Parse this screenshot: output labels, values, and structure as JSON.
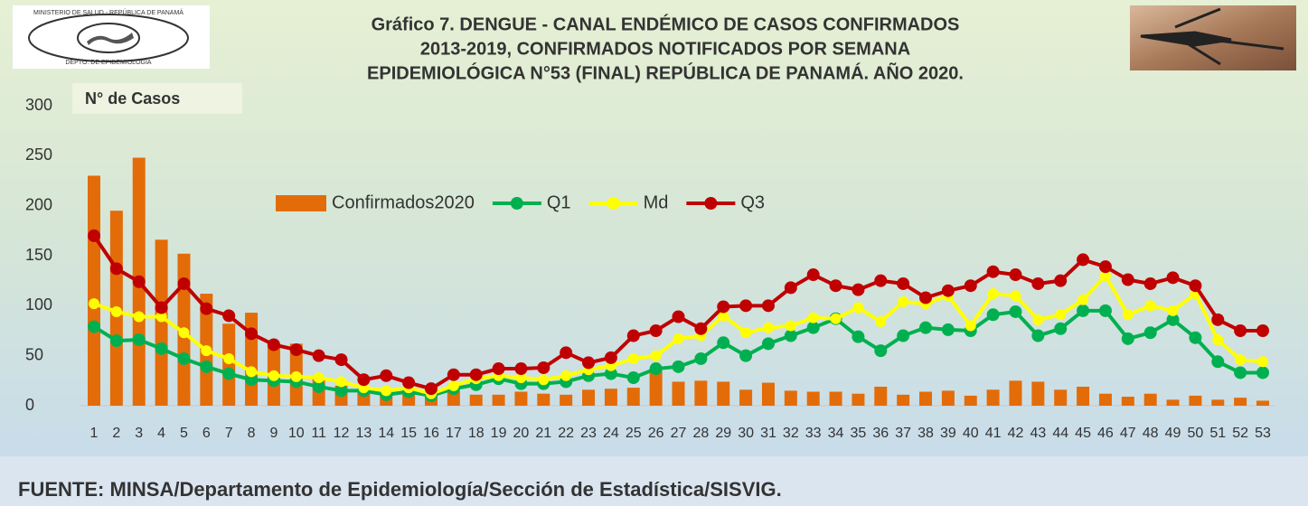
{
  "chart_data": {
    "type": "bar",
    "title_lines": [
      "Gráfico 7. DENGUE - CANAL ENDÉMICO DE CASOS CONFIRMADOS",
      "2013-2019, CONFIRMADOS NOTIFICADOS POR SEMANA",
      "EPIDEMIOLÓGICA N°53 (FINAL) REPÚBLICA DE PANAMÁ. AÑO 2020."
    ],
    "y_label": "N° de Casos",
    "logo_text": [
      "MINISTERIO DE SALUD - REPÚBLICA DE PANAMÁ",
      "DEPTO. DE EPIDEMIOLOGÍA"
    ],
    "source": "FUENTE: MINSA/Departamento de Epidemiología/Sección de Estadística/SISVIG.",
    "categories": [
      "1",
      "2",
      "3",
      "4",
      "5",
      "6",
      "7",
      "8",
      "9",
      "10",
      "11",
      "12",
      "13",
      "14",
      "15",
      "16",
      "17",
      "18",
      "19",
      "20",
      "21",
      "22",
      "23",
      "24",
      "25",
      "26",
      "27",
      "28",
      "29",
      "30",
      "31",
      "32",
      "33",
      "34",
      "35",
      "36",
      "37",
      "38",
      "39",
      "40",
      "41",
      "42",
      "43",
      "44",
      "45",
      "46",
      "47",
      "48",
      "49",
      "50",
      "51",
      "52",
      "53"
    ],
    "series": [
      {
        "name": "Confirmados2020",
        "type": "bar",
        "color": "#e36c09",
        "values": [
          230,
          195,
          248,
          166,
          152,
          112,
          82,
          93,
          60,
          62,
          28,
          20,
          15,
          12,
          14,
          10,
          15,
          11,
          11,
          14,
          12,
          11,
          16,
          17,
          18,
          38,
          24,
          25,
          24,
          16,
          23,
          15,
          14,
          14,
          12,
          19,
          11,
          14,
          15,
          10,
          16,
          25,
          24,
          16,
          19,
          12,
          9,
          12,
          6,
          10,
          6,
          8,
          5
        ]
      },
      {
        "name": "Q1",
        "type": "line",
        "color": "#00b050",
        "values": [
          79,
          65,
          66,
          57,
          47,
          39,
          32,
          26,
          25,
          24,
          19,
          15,
          15,
          11,
          14,
          10,
          17,
          21,
          27,
          22,
          22,
          24,
          30,
          32,
          28,
          37,
          39,
          47,
          63,
          50,
          62,
          70,
          78,
          87,
          69,
          55,
          70,
          78,
          76,
          75,
          91,
          94,
          70,
          77,
          95,
          95,
          67,
          73,
          86,
          68,
          44,
          33,
          33
        ]
      },
      {
        "name": "Md",
        "type": "line",
        "color": "#ffff00",
        "values": [
          102,
          94,
          89,
          89,
          73,
          55,
          47,
          34,
          30,
          29,
          28,
          24,
          18,
          15,
          18,
          12,
          20,
          27,
          30,
          28,
          26,
          30,
          36,
          40,
          47,
          50,
          67,
          70,
          90,
          73,
          78,
          80,
          88,
          87,
          98,
          84,
          104,
          102,
          110,
          80,
          112,
          110,
          86,
          91,
          106,
          130,
          91,
          100,
          95,
          112,
          66,
          46,
          44
        ]
      },
      {
        "name": "Q3",
        "type": "line",
        "color": "#c00000",
        "values": [
          170,
          137,
          124,
          98,
          122,
          97,
          90,
          72,
          61,
          56,
          50,
          46,
          26,
          30,
          23,
          17,
          31,
          31,
          37,
          37,
          38,
          53,
          43,
          48,
          70,
          75,
          89,
          77,
          99,
          100,
          100,
          118,
          131,
          120,
          116,
          125,
          122,
          108,
          115,
          120,
          134,
          131,
          122,
          125,
          146,
          139,
          126,
          122,
          128,
          120,
          86,
          75,
          75
        ]
      }
    ],
    "ylim": [
      0,
      300
    ],
    "yticks": [
      0,
      50,
      100,
      150,
      200,
      250,
      300
    ],
    "grid": false,
    "legend": "center"
  }
}
